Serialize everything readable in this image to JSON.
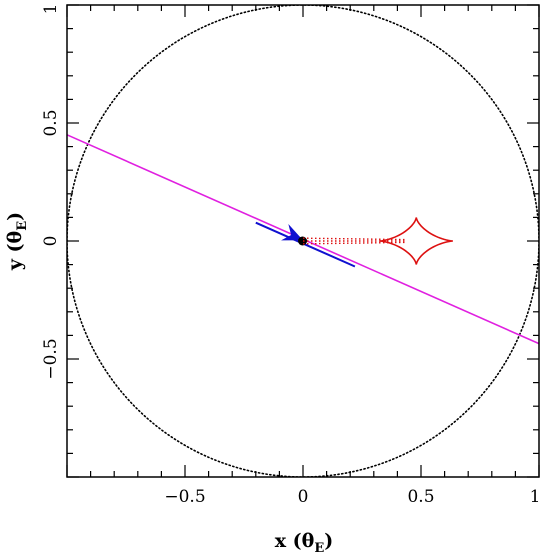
{
  "chart_data": {
    "type": "scatter",
    "title": "",
    "xlabel": "x (θ",
    "xlabel_sub": "E",
    "xlabel_close": ")",
    "ylabel": "y (θ",
    "ylabel_sub": "E",
    "ylabel_close": ")",
    "xlim": [
      -1,
      1
    ],
    "ylim": [
      -1,
      1
    ],
    "grid": false,
    "x_ticks": [
      {
        "value": -0.5,
        "label": "−0.5"
      },
      {
        "value": 0,
        "label": "0"
      },
      {
        "value": 0.5,
        "label": "0.5"
      },
      {
        "value": 1,
        "label": "1"
      }
    ],
    "y_ticks": [
      {
        "value": -0.5,
        "label": "−0.5"
      },
      {
        "value": 0,
        "label": "0"
      },
      {
        "value": 0.5,
        "label": "0.5"
      },
      {
        "value": 1,
        "label": "1"
      }
    ],
    "series": [
      {
        "kind": "einstein_ring",
        "style": "dotted",
        "color": "#000000",
        "center": [
          0,
          0
        ],
        "radius": 1.0
      },
      {
        "kind": "source_trajectory",
        "style": "solid",
        "color": "#e020e0",
        "x": [
          -1.0,
          1.0
        ],
        "y": [
          0.45,
          -0.435
        ]
      },
      {
        "kind": "observed_segment",
        "style": "solid",
        "color": "#1010d0",
        "x": [
          -0.2,
          0.22
        ],
        "y": [
          0.0775,
          -0.108
        ]
      },
      {
        "kind": "direction_arrow",
        "color": "#1010d0",
        "tail": [
          -0.07,
          0.034
        ],
        "tip": [
          0.0,
          0.003
        ]
      },
      {
        "kind": "lens_star",
        "color": "#000000",
        "x": [
          -0.002
        ],
        "y": [
          0.0
        ]
      },
      {
        "kind": "caustic_tail",
        "style": "dotted",
        "color": "#dd1111",
        "x": [
          0.0,
          0.43
        ],
        "y": [
          0.0,
          0.0
        ],
        "half_width": 0.012
      },
      {
        "kind": "caustic",
        "style": "solid",
        "color": "#dd1111",
        "center": [
          0.48,
          0.0
        ],
        "half_width_x": 0.155,
        "half_height_y": 0.1,
        "cusps": [
          [
            0.635,
            0.0
          ],
          [
            0.48,
            0.1
          ],
          [
            0.325,
            0.0
          ],
          [
            0.48,
            -0.1
          ]
        ]
      }
    ]
  }
}
